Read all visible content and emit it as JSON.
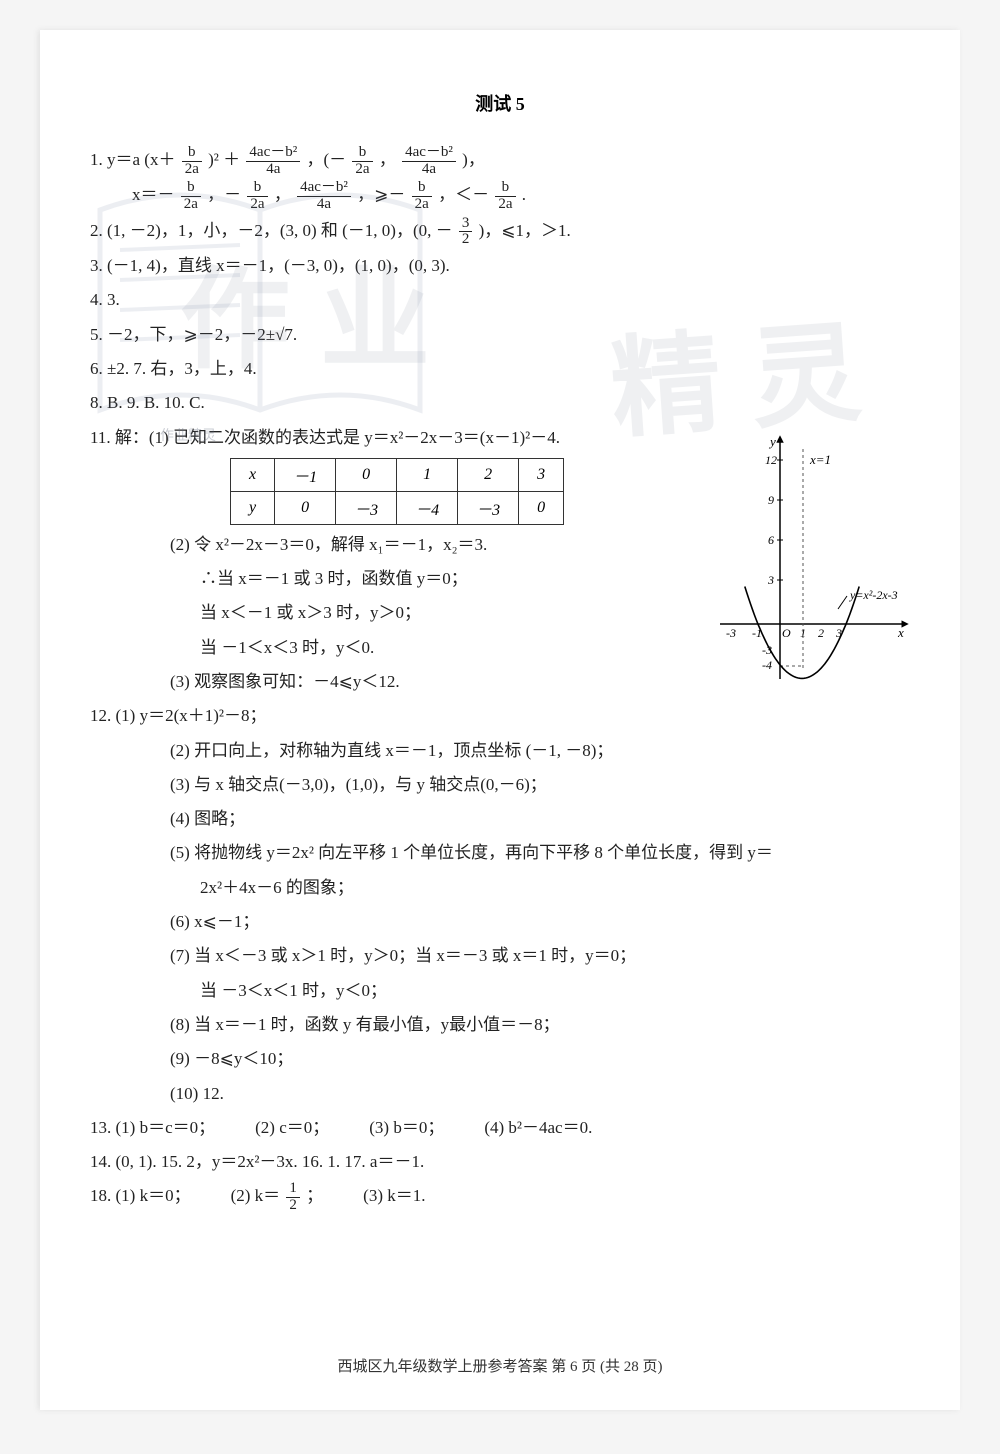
{
  "title": "测试 5",
  "q1": {
    "prefix": "1.  y＝a (x＋",
    "frac1_num": "b",
    "frac1_den": "2a",
    "mid1": ")² ＋",
    "frac2_num": "4ac－b²",
    "frac2_den": "4a",
    "mid2": "，(－",
    "frac3_num": "b",
    "frac3_den": "2a",
    "mid3": "，",
    "frac4_num": "4ac－b²",
    "frac4_den": "4a",
    "end1": ")，",
    "line2a": "x＝－",
    "l2f1_num": "b",
    "l2f1_den": "2a",
    "l2m1": "，－",
    "l2f2_num": "b",
    "l2f2_den": "2a",
    "l2m2": "，",
    "l2f3_num": "4ac－b²",
    "l2f3_den": "4a",
    "l2m3": "，⩾－",
    "l2f4_num": "b",
    "l2f4_den": "2a",
    "l2m4": "，＜－",
    "l2f5_num": "b",
    "l2f5_den": "2a",
    "l2end": "."
  },
  "q2": {
    "text_a": "2.  (1, －2)，1，小，－2，(3, 0) 和 (－1, 0)，(0, －",
    "frac_num": "3",
    "frac_den": "2",
    "text_b": ")，⩽1，＞1."
  },
  "q3": "3.  (－1, 4)，直线 x＝－1，(－3, 0)，(1, 0)，(0, 3).",
  "q4": "4.  3.",
  "q5": "5.  －2，下，⩾－2，－2±√7.",
  "q6": "6.  ±2.        7.  右，3，上，4.",
  "q8": "8.  B.     9.  B.     10.  C.",
  "q11_head": "11.  解：(1) 已知二次函数的表达式是 y＝x²－2x－3＝(x－1)²－4.",
  "table": {
    "rows": [
      [
        "x",
        "－1",
        "0",
        "1",
        "2",
        "3"
      ],
      [
        "y",
        "0",
        "－3",
        "－4",
        "－3",
        "0"
      ]
    ]
  },
  "q11_2a": "(2) 令 x²－2x－3＝0，解得 x₁＝－1，x₂＝3.",
  "q11_2b": "∴当 x＝－1 或 3 时，函数值 y＝0；",
  "q11_2c": "当 x＜－1 或 x＞3 时，y＞0；",
  "q11_2d": "当 －1＜x＜3 时，y＜0.",
  "q11_3": "(3) 观察图象可知：－4⩽y＜12.",
  "q12_1": "12.  (1)  y＝2(x＋1)²－8；",
  "q12_2": "(2)  开口向上，对称轴为直线 x＝－1，顶点坐标 (－1, －8)；",
  "q12_3": "(3)  与 x 轴交点(－3,0)，(1,0)，与 y 轴交点(0,－6)；",
  "q12_4": "(4)  图略；",
  "q12_5": "(5)  将抛物线 y＝2x² 向左平移 1 个单位长度，再向下平移 8 个单位长度，得到 y＝",
  "q12_5b": "2x²＋4x－6 的图象；",
  "q12_6": "(6)  x⩽－1；",
  "q12_7": "(7)  当 x＜－3 或 x＞1 时，y＞0；当 x＝－3 或 x＝1 时，y＝0；",
  "q12_7b": "当 －3＜x＜1 时，y＜0；",
  "q12_8": "(8)  当 x＝－1 时，函数 y 有最小值，y最小值＝－8；",
  "q12_9": "(9)  －8⩽y＜10；",
  "q12_10": "(10)  12.",
  "q13": {
    "p1": "13.  (1)  b＝c＝0；",
    "p2": "(2)  c＝0；",
    "p3": "(3)  b＝0；",
    "p4": "(4)  b²－4ac＝0."
  },
  "q14": "14.  (0, 1).       15.  2，y＝2x²－3x.       16.  1.       17.  a＝－1.",
  "q18": {
    "p1": "18.  (1)  k＝0；",
    "p2": "(2)  k＝",
    "frac_num": "1",
    "frac_den": "2",
    "p2b": "；",
    "p3": "(3)  k＝1."
  },
  "footer": "西城区九年级数学上册参考答案  第 6 页 (共 28 页)",
  "graph": {
    "y_ticks": [
      "12",
      "9",
      "6",
      "3",
      "-3",
      "-4"
    ],
    "x_ticks": [
      "-3",
      "-1",
      "O",
      "1",
      "2",
      "3"
    ],
    "axis_label_y": "y",
    "axis_label_x": "x",
    "line_label": "x=1",
    "curve_label": "y=x²-2x-3",
    "curve_color": "#000000",
    "axis_color": "#000000",
    "dash_color": "#555555",
    "vertex": [
      1,
      -4
    ],
    "xlim": [
      -4,
      4
    ],
    "ylim": [
      -5,
      13
    ]
  },
  "watermark1": "作业",
  "watermark2": "精灵",
  "wmsmall": "作业精灵"
}
